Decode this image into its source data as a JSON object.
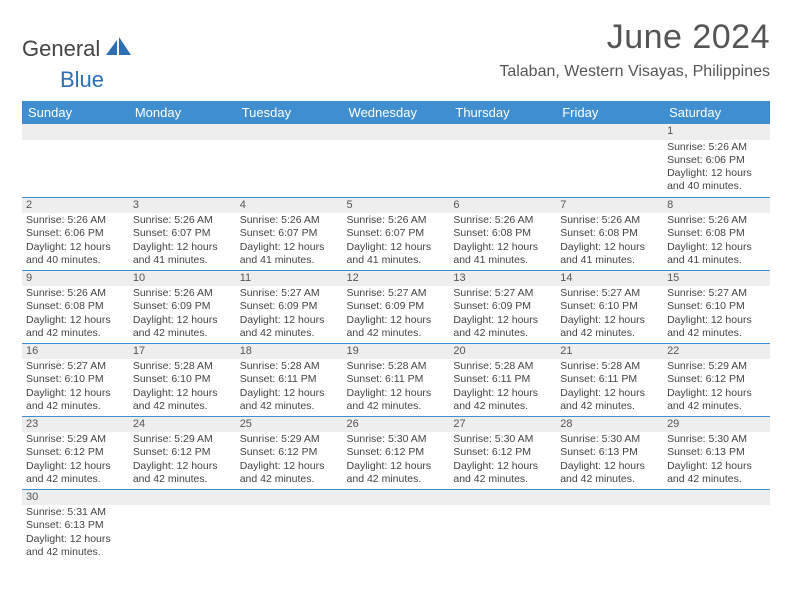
{
  "brand": {
    "part1": "General",
    "part2": "Blue"
  },
  "title": "June 2024",
  "location": "Talaban, Western Visayas, Philippines",
  "colors": {
    "header_bg": "#3f8ed0",
    "header_text": "#ffffff",
    "cell_rule": "#3f8ed0",
    "daynum_bg": "#eeeeee",
    "text": "#444444",
    "brand_accent": "#2d6fb5"
  },
  "weekdays": [
    "Sunday",
    "Monday",
    "Tuesday",
    "Wednesday",
    "Thursday",
    "Friday",
    "Saturday"
  ],
  "weeks": [
    [
      null,
      null,
      null,
      null,
      null,
      null,
      {
        "n": "1",
        "sunrise": "Sunrise: 5:26 AM",
        "sunset": "Sunset: 6:06 PM",
        "daylight": "Daylight: 12 hours and 40 minutes."
      }
    ],
    [
      {
        "n": "2",
        "sunrise": "Sunrise: 5:26 AM",
        "sunset": "Sunset: 6:06 PM",
        "daylight": "Daylight: 12 hours and 40 minutes."
      },
      {
        "n": "3",
        "sunrise": "Sunrise: 5:26 AM",
        "sunset": "Sunset: 6:07 PM",
        "daylight": "Daylight: 12 hours and 41 minutes."
      },
      {
        "n": "4",
        "sunrise": "Sunrise: 5:26 AM",
        "sunset": "Sunset: 6:07 PM",
        "daylight": "Daylight: 12 hours and 41 minutes."
      },
      {
        "n": "5",
        "sunrise": "Sunrise: 5:26 AM",
        "sunset": "Sunset: 6:07 PM",
        "daylight": "Daylight: 12 hours and 41 minutes."
      },
      {
        "n": "6",
        "sunrise": "Sunrise: 5:26 AM",
        "sunset": "Sunset: 6:08 PM",
        "daylight": "Daylight: 12 hours and 41 minutes."
      },
      {
        "n": "7",
        "sunrise": "Sunrise: 5:26 AM",
        "sunset": "Sunset: 6:08 PM",
        "daylight": "Daylight: 12 hours and 41 minutes."
      },
      {
        "n": "8",
        "sunrise": "Sunrise: 5:26 AM",
        "sunset": "Sunset: 6:08 PM",
        "daylight": "Daylight: 12 hours and 41 minutes."
      }
    ],
    [
      {
        "n": "9",
        "sunrise": "Sunrise: 5:26 AM",
        "sunset": "Sunset: 6:08 PM",
        "daylight": "Daylight: 12 hours and 42 minutes."
      },
      {
        "n": "10",
        "sunrise": "Sunrise: 5:26 AM",
        "sunset": "Sunset: 6:09 PM",
        "daylight": "Daylight: 12 hours and 42 minutes."
      },
      {
        "n": "11",
        "sunrise": "Sunrise: 5:27 AM",
        "sunset": "Sunset: 6:09 PM",
        "daylight": "Daylight: 12 hours and 42 minutes."
      },
      {
        "n": "12",
        "sunrise": "Sunrise: 5:27 AM",
        "sunset": "Sunset: 6:09 PM",
        "daylight": "Daylight: 12 hours and 42 minutes."
      },
      {
        "n": "13",
        "sunrise": "Sunrise: 5:27 AM",
        "sunset": "Sunset: 6:09 PM",
        "daylight": "Daylight: 12 hours and 42 minutes."
      },
      {
        "n": "14",
        "sunrise": "Sunrise: 5:27 AM",
        "sunset": "Sunset: 6:10 PM",
        "daylight": "Daylight: 12 hours and 42 minutes."
      },
      {
        "n": "15",
        "sunrise": "Sunrise: 5:27 AM",
        "sunset": "Sunset: 6:10 PM",
        "daylight": "Daylight: 12 hours and 42 minutes."
      }
    ],
    [
      {
        "n": "16",
        "sunrise": "Sunrise: 5:27 AM",
        "sunset": "Sunset: 6:10 PM",
        "daylight": "Daylight: 12 hours and 42 minutes."
      },
      {
        "n": "17",
        "sunrise": "Sunrise: 5:28 AM",
        "sunset": "Sunset: 6:10 PM",
        "daylight": "Daylight: 12 hours and 42 minutes."
      },
      {
        "n": "18",
        "sunrise": "Sunrise: 5:28 AM",
        "sunset": "Sunset: 6:11 PM",
        "daylight": "Daylight: 12 hours and 42 minutes."
      },
      {
        "n": "19",
        "sunrise": "Sunrise: 5:28 AM",
        "sunset": "Sunset: 6:11 PM",
        "daylight": "Daylight: 12 hours and 42 minutes."
      },
      {
        "n": "20",
        "sunrise": "Sunrise: 5:28 AM",
        "sunset": "Sunset: 6:11 PM",
        "daylight": "Daylight: 12 hours and 42 minutes."
      },
      {
        "n": "21",
        "sunrise": "Sunrise: 5:28 AM",
        "sunset": "Sunset: 6:11 PM",
        "daylight": "Daylight: 12 hours and 42 minutes."
      },
      {
        "n": "22",
        "sunrise": "Sunrise: 5:29 AM",
        "sunset": "Sunset: 6:12 PM",
        "daylight": "Daylight: 12 hours and 42 minutes."
      }
    ],
    [
      {
        "n": "23",
        "sunrise": "Sunrise: 5:29 AM",
        "sunset": "Sunset: 6:12 PM",
        "daylight": "Daylight: 12 hours and 42 minutes."
      },
      {
        "n": "24",
        "sunrise": "Sunrise: 5:29 AM",
        "sunset": "Sunset: 6:12 PM",
        "daylight": "Daylight: 12 hours and 42 minutes."
      },
      {
        "n": "25",
        "sunrise": "Sunrise: 5:29 AM",
        "sunset": "Sunset: 6:12 PM",
        "daylight": "Daylight: 12 hours and 42 minutes."
      },
      {
        "n": "26",
        "sunrise": "Sunrise: 5:30 AM",
        "sunset": "Sunset: 6:12 PM",
        "daylight": "Daylight: 12 hours and 42 minutes."
      },
      {
        "n": "27",
        "sunrise": "Sunrise: 5:30 AM",
        "sunset": "Sunset: 6:12 PM",
        "daylight": "Daylight: 12 hours and 42 minutes."
      },
      {
        "n": "28",
        "sunrise": "Sunrise: 5:30 AM",
        "sunset": "Sunset: 6:13 PM",
        "daylight": "Daylight: 12 hours and 42 minutes."
      },
      {
        "n": "29",
        "sunrise": "Sunrise: 5:30 AM",
        "sunset": "Sunset: 6:13 PM",
        "daylight": "Daylight: 12 hours and 42 minutes."
      }
    ],
    [
      {
        "n": "30",
        "sunrise": "Sunrise: 5:31 AM",
        "sunset": "Sunset: 6:13 PM",
        "daylight": "Daylight: 12 hours and 42 minutes."
      },
      null,
      null,
      null,
      null,
      null,
      null
    ]
  ]
}
